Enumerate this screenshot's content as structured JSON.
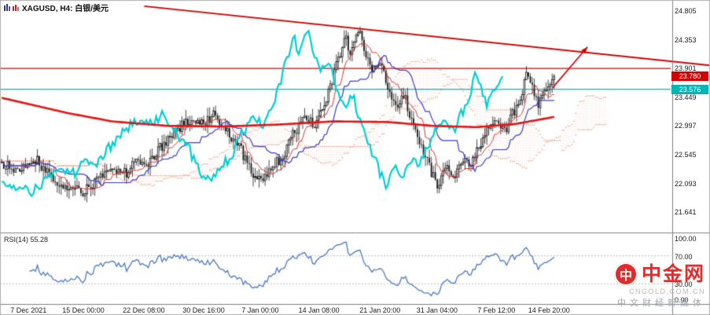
{
  "header": {
    "symbol_label": "XAGUSD, H4: 白银/美元"
  },
  "price_badges": {
    "last": "23.780",
    "level": "23.576"
  },
  "watermark": {
    "logo_char": "中",
    "brand": "中金网",
    "domain": "CNGOLD.COM.CN",
    "tagline": "中文财经新媒体"
  },
  "chart_data": {
    "type": "candlestick",
    "symbol": "XAGUSD",
    "timeframe": "H4",
    "title": "XAGUSD, H4: 白银/美元",
    "last_price": 23.78,
    "price_axis_ticks": [
      24.805,
      24.353,
      23.901,
      23.449,
      22.997,
      22.545,
      22.093,
      21.641
    ],
    "x_axis_labels": [
      {
        "label": "7 Dec 2021",
        "f": 0.05
      },
      {
        "label": "15 Dec 00:00",
        "f": 0.149
      },
      {
        "label": "22 Dec 08:00",
        "f": 0.258
      },
      {
        "label": "30 Dec 16:00",
        "f": 0.366
      },
      {
        "label": "7 Jan 00:00",
        "f": 0.468
      },
      {
        "label": "14 Jan 08:00",
        "f": 0.574
      },
      {
        "label": "21 Jan 20:00",
        "f": 0.684
      },
      {
        "label": "31 Jan 04:00",
        "f": 0.787
      },
      {
        "label": "7 Feb 12:00",
        "f": 0.894
      },
      {
        "label": "14 Feb 20:00",
        "f": 0.989
      }
    ],
    "horizontal_lines": [
      {
        "price": 23.901,
        "color": "#d40000"
      },
      {
        "price": 23.576,
        "color": "#00b6b6"
      }
    ],
    "trendline": {
      "x1_frac": 0.215,
      "price1": 24.88,
      "x2_frac": 1.059,
      "price2": 23.95,
      "color": "#d40000"
    },
    "arrow": {
      "x1_frac": 0.824,
      "price1": 23.6,
      "x2_frac": 0.876,
      "price2": 24.24,
      "color": "#d40000"
    },
    "candle_count": 280,
    "noise_seed": 13,
    "price_path_anchors": [
      [
        0.0,
        22.42
      ],
      [
        0.03,
        22.3
      ],
      [
        0.06,
        22.48
      ],
      [
        0.09,
        22.18
      ],
      [
        0.12,
        22.04
      ],
      [
        0.15,
        21.95
      ],
      [
        0.175,
        22.18
      ],
      [
        0.2,
        22.3
      ],
      [
        0.225,
        22.24
      ],
      [
        0.25,
        22.48
      ],
      [
        0.27,
        22.42
      ],
      [
        0.295,
        22.75
      ],
      [
        0.32,
        22.95
      ],
      [
        0.34,
        23.1
      ],
      [
        0.365,
        23.04
      ],
      [
        0.385,
        23.18
      ],
      [
        0.405,
        22.95
      ],
      [
        0.425,
        22.75
      ],
      [
        0.445,
        22.42
      ],
      [
        0.465,
        22.12
      ],
      [
        0.49,
        22.35
      ],
      [
        0.51,
        22.55
      ],
      [
        0.53,
        22.9
      ],
      [
        0.55,
        23.15
      ],
      [
        0.565,
        23.02
      ],
      [
        0.58,
        23.28
      ],
      [
        0.595,
        23.6
      ],
      [
        0.61,
        24.05
      ],
      [
        0.622,
        24.42
      ],
      [
        0.632,
        24.08
      ],
      [
        0.645,
        24.5
      ],
      [
        0.658,
        24.18
      ],
      [
        0.67,
        23.85
      ],
      [
        0.684,
        23.98
      ],
      [
        0.7,
        23.62
      ],
      [
        0.715,
        23.32
      ],
      [
        0.73,
        23.46
      ],
      [
        0.745,
        23.0
      ],
      [
        0.76,
        22.65
      ],
      [
        0.775,
        22.32
      ],
      [
        0.79,
        22.02
      ],
      [
        0.805,
        22.35
      ],
      [
        0.82,
        22.14
      ],
      [
        0.835,
        22.5
      ],
      [
        0.85,
        22.4
      ],
      [
        0.865,
        22.7
      ],
      [
        0.88,
        22.95
      ],
      [
        0.895,
        23.06
      ],
      [
        0.91,
        22.9
      ],
      [
        0.925,
        23.2
      ],
      [
        0.94,
        23.45
      ],
      [
        0.952,
        23.82
      ],
      [
        0.962,
        23.55
      ],
      [
        0.972,
        23.35
      ],
      [
        0.985,
        23.62
      ],
      [
        1.0,
        23.78
      ]
    ],
    "slow_ma_anchors": [
      [
        0.0,
        23.44
      ],
      [
        0.06,
        23.32
      ],
      [
        0.12,
        23.2
      ],
      [
        0.2,
        23.07
      ],
      [
        0.3,
        23.0
      ],
      [
        0.4,
        22.99
      ],
      [
        0.5,
        23.02
      ],
      [
        0.6,
        23.07
      ],
      [
        0.7,
        23.06
      ],
      [
        0.78,
        23.0
      ],
      [
        0.86,
        22.98
      ],
      [
        0.93,
        23.03
      ],
      [
        1.0,
        23.14
      ]
    ],
    "overlays": [
      {
        "name": "ichimoku-cloud",
        "style": "dotted"
      },
      {
        "name": "chikou-line",
        "color_key": "chikou"
      },
      {
        "name": "tenkan-line",
        "color_key": "tenkan"
      },
      {
        "name": "kijun-line",
        "color_key": "kijun"
      },
      {
        "name": "slow-ma",
        "color_key": "slow_ma"
      }
    ],
    "rsi": {
      "label": "RSI(14) 55.28",
      "period": 14,
      "value": 55.28,
      "levels": [
        70,
        30
      ],
      "axis_ticks": [
        100,
        70,
        30,
        0
      ]
    },
    "colors": {
      "candle": "#1a1a1a",
      "chikou": "#00cfd4",
      "tenkan": "#dd3333",
      "kijun": "#3b3bd0",
      "slow_ma": "#e81212",
      "cloud": "#f0845f",
      "trend": "#d40000",
      "level_cyan": "#00b6b6",
      "rsi_line": "#4878c8",
      "rsi_dash": "#bbbbbb",
      "axis_line": "#808080"
    }
  }
}
